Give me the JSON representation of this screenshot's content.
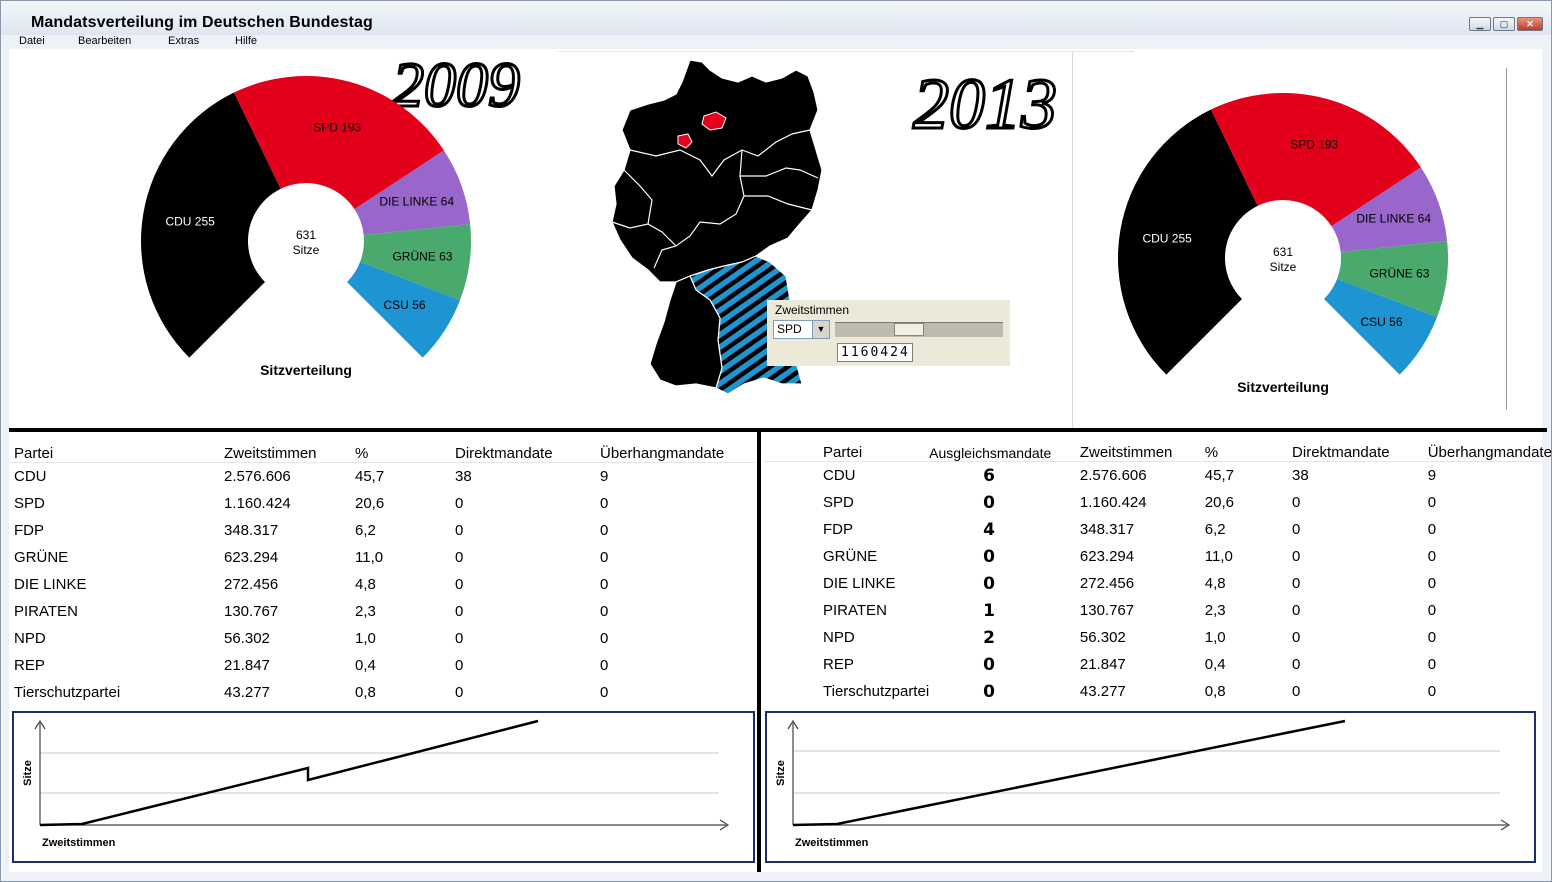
{
  "window": {
    "title": "Mandatsverteilung im Deutschen Bundestag",
    "menu": [
      "Datei",
      "Bearbeiten",
      "Extras",
      "Hilfe"
    ]
  },
  "years": {
    "left": "2009",
    "right": "2013"
  },
  "left_chart": {
    "center_value": "631",
    "center_label": "Sitze",
    "caption": "Sitzverteilung",
    "segments": [
      {
        "label": "CDU 255",
        "value": 255,
        "color": "#000000",
        "text_color": "#ffffff"
      },
      {
        "label": "SPD 193",
        "value": 193,
        "color": "#e2001a",
        "text_color": "#000000"
      },
      {
        "label": "DIE LINKE 64",
        "value": 64,
        "color": "#9966cc",
        "text_color": "#000000"
      },
      {
        "label": "GRÜNE 63",
        "value": 63,
        "color": "#4aaa6e",
        "text_color": "#000000"
      },
      {
        "label": "CSU 56",
        "value": 56,
        "color": "#1f94d2",
        "text_color": "#000000"
      }
    ]
  },
  "right_chart": {
    "center_value": "631",
    "center_label": "Sitze",
    "caption": "Sitzverteilung",
    "segments": [
      {
        "label": "CDU 255",
        "value": 255,
        "color": "#000000",
        "text_color": "#ffffff"
      },
      {
        "label": "SPD 193",
        "value": 193,
        "color": "#e2001a",
        "text_color": "#000000"
      },
      {
        "label": "DIE LINKE 64",
        "value": 64,
        "color": "#9966cc",
        "text_color": "#000000"
      },
      {
        "label": "GRÜNE 63",
        "value": 63,
        "color": "#4aaa6e",
        "text_color": "#000000"
      },
      {
        "label": "CSU 56",
        "value": 56,
        "color": "#1f94d2",
        "text_color": "#000000"
      }
    ]
  },
  "control": {
    "label": "Zweitstimmen",
    "party": "SPD",
    "value": "1160424",
    "slider_fraction": 0.43
  },
  "left_table": {
    "headers": [
      "Partei",
      "Zweitstimmen",
      "%",
      "Direktmandate",
      "Überhangmandate"
    ],
    "rows": [
      [
        "CDU",
        "2.576.606",
        "45,7",
        "38",
        "9"
      ],
      [
        "SPD",
        "1.160.424",
        "20,6",
        "0",
        "0"
      ],
      [
        "FDP",
        "348.317",
        "6,2",
        "0",
        "0"
      ],
      [
        "GRÜNE",
        "623.294",
        "11,0",
        "0",
        "0"
      ],
      [
        "DIE LINKE",
        "272.456",
        "4,8",
        "0",
        "0"
      ],
      [
        "PIRATEN",
        "130.767",
        "2,3",
        "0",
        "0"
      ],
      [
        "NPD",
        "56.302",
        "1,0",
        "0",
        "0"
      ],
      [
        "REP",
        "21.847",
        "0,4",
        "0",
        "0"
      ],
      [
        "Tierschutzpartei",
        "43.277",
        "0,8",
        "0",
        "0"
      ]
    ]
  },
  "right_table": {
    "headers": [
      "Partei",
      "Ausgleichsmandate",
      "Zweitstimmen",
      "%",
      "Direktmandate",
      "Überhangmandate"
    ],
    "rows": [
      [
        "CDU",
        "6",
        "2.576.606",
        "45,7",
        "38",
        "9"
      ],
      [
        "SPD",
        "0",
        "1.160.424",
        "20,6",
        "0",
        "0"
      ],
      [
        "FDP",
        "4",
        "348.317",
        "6,2",
        "0",
        "0"
      ],
      [
        "GRÜNE",
        "0",
        "623.294",
        "11,0",
        "0",
        "0"
      ],
      [
        "DIE LINKE",
        "0",
        "272.456",
        "4,8",
        "0",
        "0"
      ],
      [
        "PIRATEN",
        "1",
        "130.767",
        "2,3",
        "0",
        "0"
      ],
      [
        "NPD",
        "2",
        "56.302",
        "1,0",
        "0",
        "0"
      ],
      [
        "REP",
        "0",
        "21.847",
        "0,4",
        "0",
        "0"
      ],
      [
        "Tierschutzpartei",
        "0",
        "43.277",
        "0,8",
        "0",
        "0"
      ]
    ]
  },
  "graphs": {
    "left": {
      "ylabel": "Sitze",
      "xlabel": "Zweitstimmen"
    },
    "right": {
      "ylabel": "Sitze",
      "xlabel": "Zweitstimmen"
    }
  }
}
